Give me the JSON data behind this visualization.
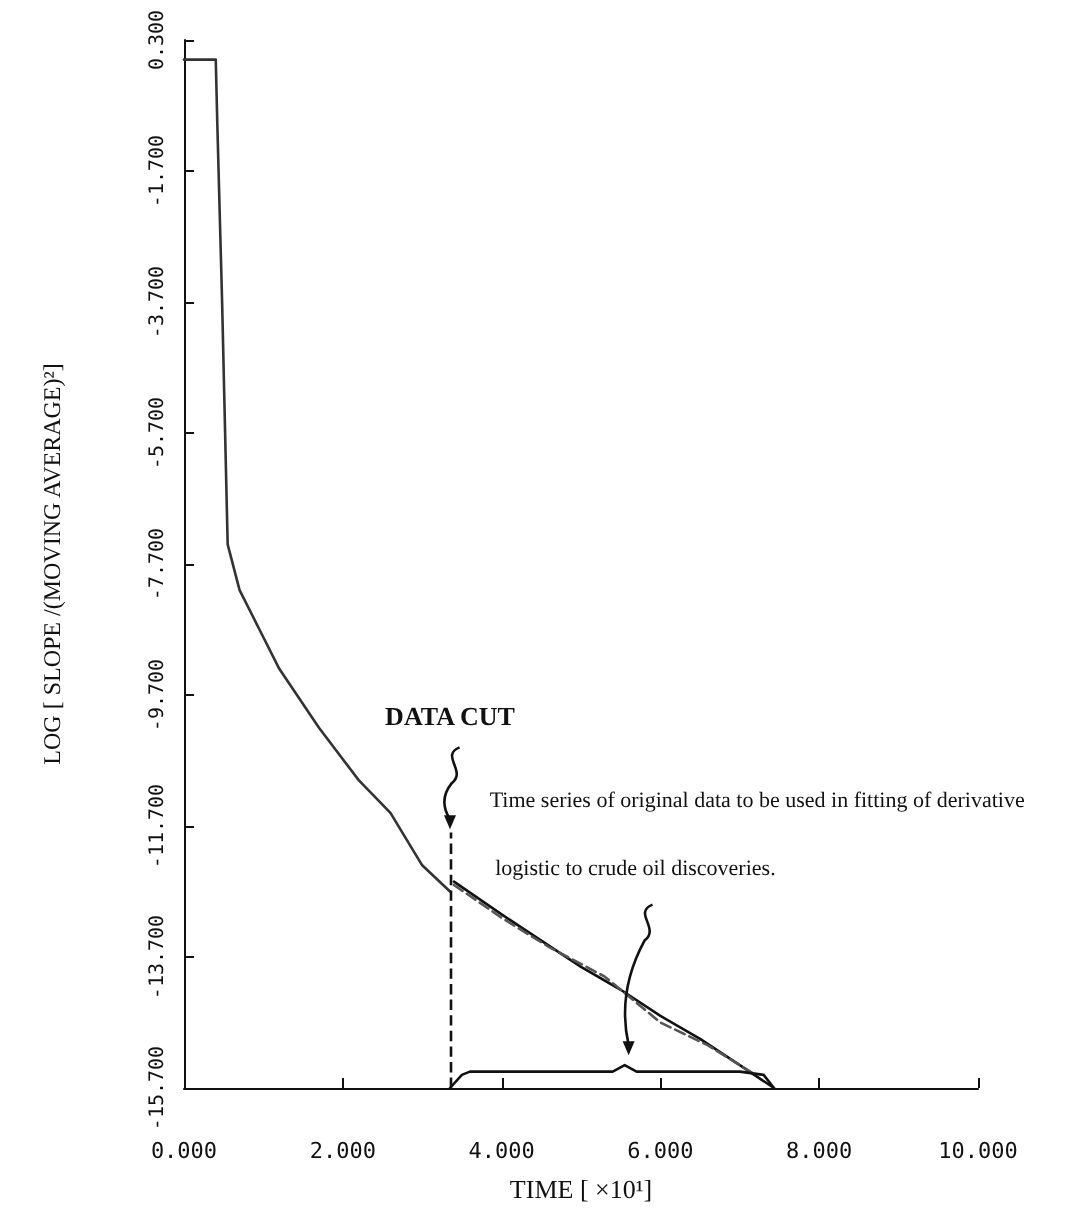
{
  "chart_data": {
    "type": "line",
    "xlabel": "TIME [ ×10¹]",
    "ylabel": "LOG [ SLOPE /(MOVING AVERAGE)²]",
    "xlim": [
      0,
      10
    ],
    "ylim": [
      -15.7,
      0.3
    ],
    "xticks": [
      {
        "value": 0,
        "label": "0.000"
      },
      {
        "value": 2,
        "label": "2.000"
      },
      {
        "value": 4,
        "label": "4.000"
      },
      {
        "value": 6,
        "label": "6.000"
      },
      {
        "value": 8,
        "label": "8.000"
      },
      {
        "value": 10,
        "label": "10.000"
      }
    ],
    "yticks": [
      {
        "value": 0.3,
        "label": "0.300"
      },
      {
        "value": -1.7,
        "label": "-1.700"
      },
      {
        "value": -3.7,
        "label": "-3.700"
      },
      {
        "value": -5.7,
        "label": "-5.700"
      },
      {
        "value": -7.7,
        "label": "-7.700"
      },
      {
        "value": -9.7,
        "label": "-9.700"
      },
      {
        "value": -11.7,
        "label": "-11.700"
      },
      {
        "value": -13.7,
        "label": "-13.700"
      },
      {
        "value": -15.7,
        "label": "-15.700"
      }
    ],
    "grid": false,
    "marker": "none",
    "series": [
      {
        "color": "#333333",
        "line_style": "solid",
        "x": [
          0,
          0.4,
          0.42,
          0.48,
          0.55,
          0.7,
          0.95,
          1.2,
          1.7,
          2.2,
          2.6,
          3.0,
          3.35
        ],
        "values": [
          0.0,
          0.0,
          -1.0,
          -3.7,
          -7.4,
          -8.1,
          -8.7,
          -9.3,
          -10.2,
          -11.0,
          -11.5,
          -12.3,
          -12.7
        ]
      },
      {
        "color": "#111111",
        "line_style": "solid",
        "x": [
          3.4,
          4.0,
          4.5,
          5.0,
          5.5,
          6.0,
          6.5,
          7.0,
          7.43
        ],
        "values": [
          -12.55,
          -13.05,
          -13.45,
          -13.85,
          -14.2,
          -14.6,
          -14.95,
          -15.35,
          -15.7
        ]
      },
      {
        "color": "#555555",
        "line_style": "dashed",
        "x": [
          3.4,
          4.0,
          4.6,
          5.3,
          6.0,
          6.6,
          7.2
        ],
        "values": [
          -12.6,
          -13.1,
          -13.55,
          -14.0,
          -14.7,
          -15.05,
          -15.5
        ]
      },
      {
        "color": "#111111",
        "line_style": "solid",
        "x": [
          3.35,
          3.5,
          3.6,
          5.4,
          5.55,
          5.7,
          7.0,
          7.3,
          7.43
        ],
        "values": [
          -15.7,
          -15.5,
          -15.45,
          -15.45,
          -15.35,
          -15.45,
          -15.45,
          -15.5,
          -15.7
        ]
      }
    ],
    "ref_lines": [
      {
        "axis": "x",
        "value": 3.35,
        "label": "DATA CUT",
        "line_style": "dashed",
        "color": "#111111"
      }
    ],
    "annotations": [
      "Time series of original data to be used in fitting of derivative logistic to crude oil discoveries."
    ]
  }
}
